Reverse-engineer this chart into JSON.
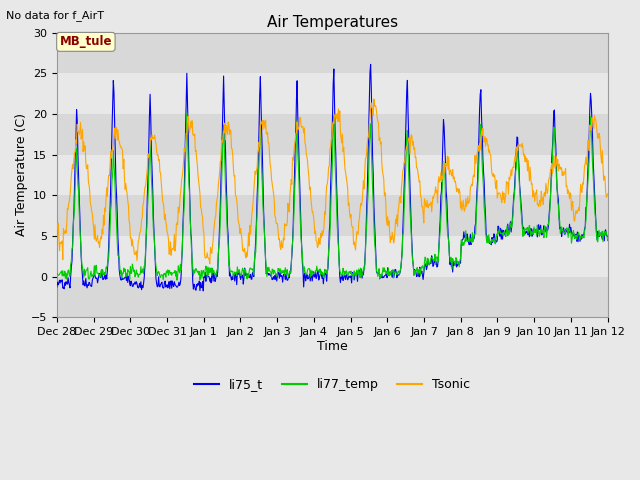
{
  "title": "Air Temperatures",
  "no_data_text": "No data for f_AirT",
  "mb_tule_label": "MB_tule",
  "xlabel": "Time",
  "ylabel": "Air Temperature (C)",
  "ylim": [
    -5,
    30
  ],
  "yticks": [
    -5,
    0,
    5,
    10,
    15,
    20,
    25,
    30
  ],
  "background_color": "#e8e8e8",
  "plot_bg_color": "#e8e8e8",
  "band_colors": [
    "#d8d8d8",
    "#e8e8e8"
  ],
  "line_colors": {
    "li75_t": "#0000ee",
    "li77_temp": "#00cc00",
    "Tsonic": "#ffa500"
  },
  "legend_labels": [
    "li75_t",
    "li77_temp",
    "Tsonic"
  ],
  "n_points": 840,
  "n_days": 15,
  "days": [
    "Dec 28",
    "Dec 29",
    "Dec 30",
    "Dec 31",
    "Jan 1",
    "Jan 2",
    "Jan 3",
    "Jan 4",
    "Jan 5",
    "Jan 6",
    "Jan 7",
    "Jan 8",
    "Jan 9",
    "Jan 10",
    "Jan 11",
    "Jan 12"
  ]
}
